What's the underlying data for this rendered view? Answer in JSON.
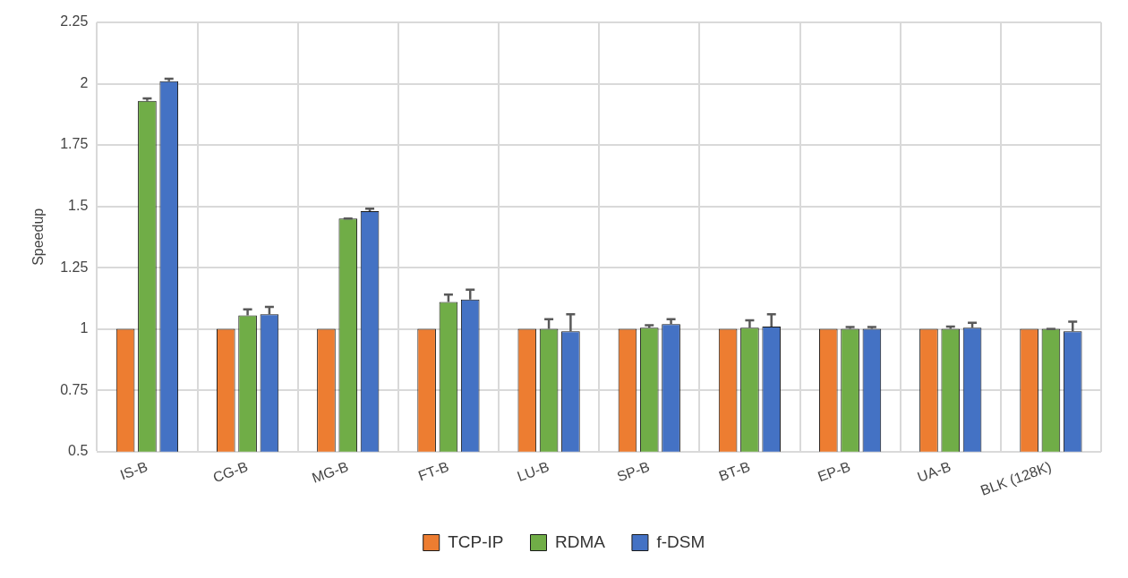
{
  "chart_data": {
    "type": "bar",
    "ylabel": "Speedup",
    "categories": [
      "IS-B",
      "CG-B",
      "MG-B",
      "FT-B",
      "LU-B",
      "SP-B",
      "BT-B",
      "EP-B",
      "UA-B",
      "BLK (128K)"
    ],
    "series": [
      {
        "name": "TCP-IP",
        "color": "#ed7d31",
        "values": [
          1,
          1,
          1,
          1,
          1,
          1,
          1,
          1,
          1,
          1
        ]
      },
      {
        "name": "RDMA",
        "color": "#70ad47",
        "values": [
          1.93,
          1.055,
          1.45,
          1.11,
          1.0,
          1.005,
          1.005,
          1.0,
          1.0,
          1.0
        ],
        "errors": [
          [
            1.93,
            1.94
          ],
          [
            1.055,
            1.08
          ],
          [
            1.45,
            1.45
          ],
          [
            1.11,
            1.14
          ],
          [
            1.0,
            1.04
          ],
          [
            1.005,
            1.015
          ],
          [
            1.005,
            1.035
          ],
          [
            1.0,
            1.008
          ],
          [
            1.0,
            1.01
          ],
          [
            1.0,
            1.0
          ]
        ]
      },
      {
        "name": "f-DSM",
        "color": "#4472c4",
        "values": [
          2.01,
          1.06,
          1.48,
          1.12,
          0.99,
          1.02,
          1.01,
          1.0,
          1.005,
          0.99
        ],
        "errors": [
          [
            2.01,
            2.02
          ],
          [
            1.06,
            1.09
          ],
          [
            1.48,
            1.49
          ],
          [
            1.12,
            1.16
          ],
          [
            0.99,
            1.06
          ],
          [
            1.02,
            1.04
          ],
          [
            1.01,
            1.06
          ],
          [
            1.0,
            1.008
          ],
          [
            1.005,
            1.025
          ],
          [
            0.99,
            1.03
          ]
        ]
      }
    ],
    "ylim": [
      0.5,
      2.25
    ],
    "yticks": [
      0.5,
      0.75,
      1,
      1.25,
      1.5,
      1.75,
      2,
      2.25
    ],
    "grid": true,
    "legend": "bottom"
  }
}
